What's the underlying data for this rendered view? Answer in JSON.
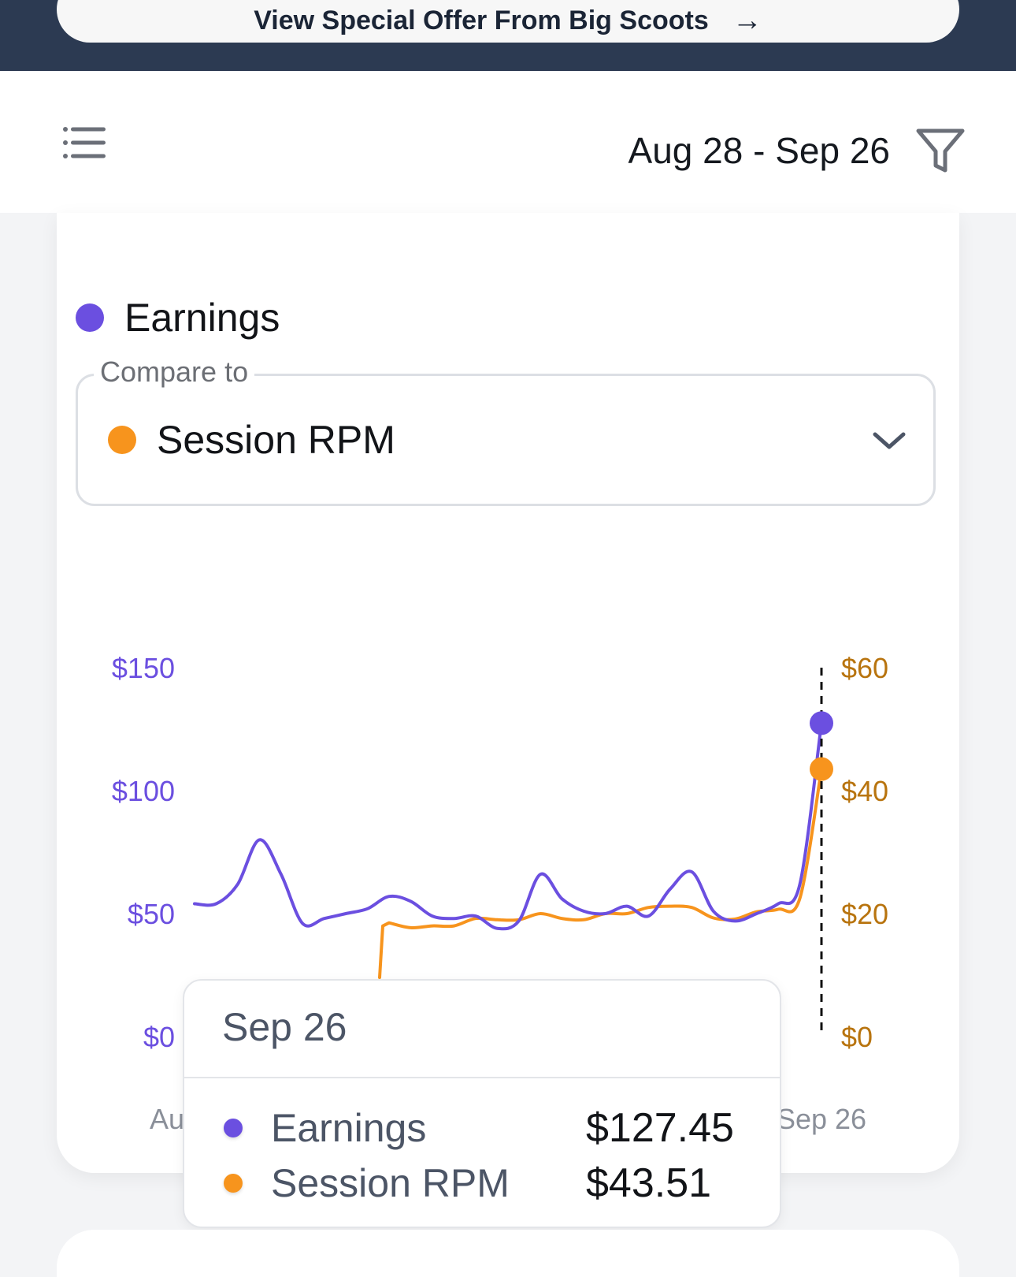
{
  "banner": {
    "offer_label": "View Special Offer From Big Scoots",
    "arrow": "→"
  },
  "header": {
    "date_range": "Aug 28 - Sep 26"
  },
  "card": {
    "primary_metric": "Earnings",
    "compare_label": "Compare to",
    "compare_value": "Session RPM"
  },
  "colors": {
    "earnings": "#6b4fe0",
    "session_rpm": "#f7941d",
    "left_axis": "#6b4fe0",
    "right_axis": "#b8740f"
  },
  "chart_data": {
    "type": "line",
    "x_labels": [
      "Au",
      "Sep 26"
    ],
    "left_axis": {
      "ticks": [
        "$150",
        "$100",
        "$50",
        "$0"
      ],
      "ylim": [
        0,
        150
      ]
    },
    "right_axis": {
      "ticks": [
        "$60",
        "$40",
        "$20",
        "$0"
      ],
      "ylim": [
        0,
        60
      ]
    },
    "series": [
      {
        "name": "Earnings",
        "axis": "left",
        "values": [
          54,
          54,
          62,
          80,
          66,
          46,
          48,
          50,
          52,
          57,
          55,
          49,
          48,
          49,
          44,
          47,
          66,
          56,
          51,
          50,
          53,
          49,
          60,
          67,
          51,
          47,
          50,
          54,
          62,
          127.45
        ]
      },
      {
        "name": "Session RPM",
        "axis": "left_right",
        "values": [
          null,
          null,
          null,
          null,
          null,
          null,
          null,
          null,
          null,
          18.5,
          17.7,
          18.0,
          18.0,
          19.2,
          19.0,
          19.0,
          20.0,
          19.2,
          19.0,
          20.0,
          20.0,
          21.0,
          21.2,
          21.0,
          19.3,
          19.1,
          20.3,
          20.7,
          22.5,
          43.51
        ]
      }
    ],
    "highlight": {
      "date": "Sep 26",
      "rows": [
        {
          "name": "Earnings",
          "value": "$127.45"
        },
        {
          "name": "Session RPM",
          "value": "$43.51"
        }
      ]
    }
  }
}
